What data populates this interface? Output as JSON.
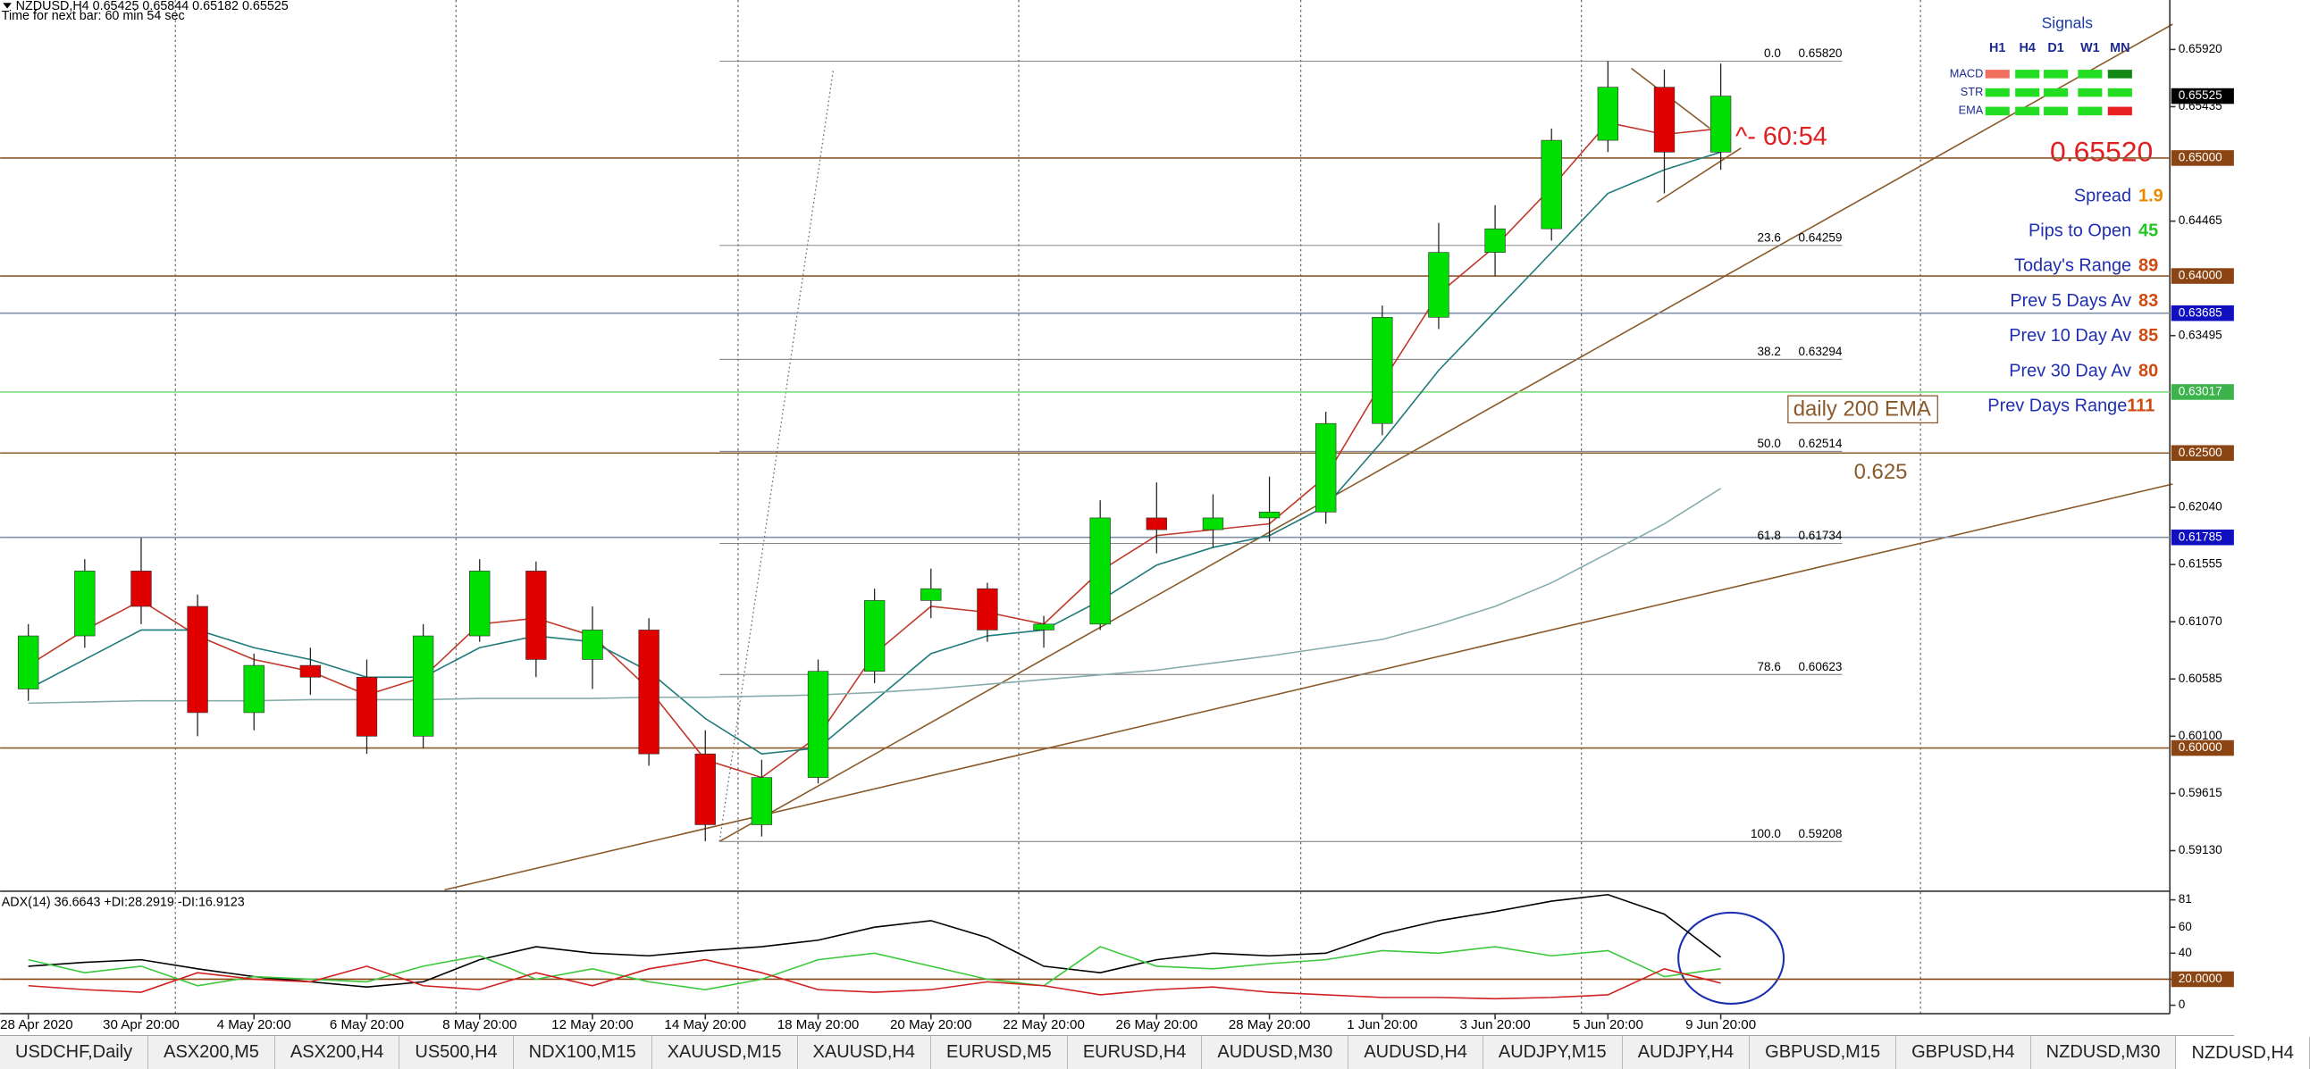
{
  "header": {
    "symbol_line": "NZDUSD,H4  0.65425 0.65844 0.65182 0.65525",
    "timer": "Time for next bar: 60 min 54 sec"
  },
  "chart_data": [
    {
      "type": "candlestick",
      "xlim": [
        -0.5,
        37.96
      ],
      "xticks": [
        {
          "value": 0,
          "label": "28 Apr 2020"
        },
        {
          "value": 2,
          "label": "30 Apr 20:00"
        },
        {
          "value": 4,
          "label": "4 May 20:00"
        },
        {
          "value": 6,
          "label": "6 May 20:00"
        },
        {
          "value": 8,
          "label": "8 May 20:00"
        },
        {
          "value": 10,
          "label": "12 May 20:00"
        },
        {
          "value": 12,
          "label": "14 May 20:00"
        },
        {
          "value": 14,
          "label": "18 May 20:00"
        },
        {
          "value": 16,
          "label": "20 May 20:00"
        },
        {
          "value": 18,
          "label": "22 May 20:00"
        },
        {
          "value": 20,
          "label": "26 May 20:00"
        },
        {
          "value": 22,
          "label": "28 May 20:00"
        },
        {
          "value": 24,
          "label": "1 Jun 20:00"
        },
        {
          "value": 26,
          "label": "3 Jun 20:00"
        },
        {
          "value": 28,
          "label": "5 Jun 20:00"
        },
        {
          "value": 30,
          "label": "9 Jun 20:00"
        }
      ],
      "ylim": [
        0.58798,
        0.66339
      ],
      "yticks": [
        {
          "value": 0.6592,
          "label": "0.65920"
        },
        {
          "value": 0.65435,
          "label": "0.65435"
        },
        {
          "value": 0.64465,
          "label": "0.64465"
        },
        {
          "value": 0.63495,
          "label": "0.63495"
        },
        {
          "value": 0.6204,
          "label": "0.62040"
        },
        {
          "value": 0.61555,
          "label": "0.61555"
        },
        {
          "value": 0.6107,
          "label": "0.61070"
        },
        {
          "value": 0.60585,
          "label": "0.60585"
        },
        {
          "value": 0.601,
          "label": "0.60100"
        },
        {
          "value": 0.59615,
          "label": "0.59615"
        },
        {
          "value": 0.5913,
          "label": "0.59130"
        }
      ],
      "open": [
        0.605,
        0.6095,
        0.615,
        0.612,
        0.603,
        0.607,
        0.606,
        0.601,
        0.6095,
        0.615,
        0.6075,
        0.61,
        0.5995,
        0.5935,
        0.5975,
        0.6065,
        0.6125,
        0.6135,
        0.61,
        0.6105,
        0.6195,
        0.6185,
        0.6195,
        0.62,
        0.6275,
        0.6365,
        0.642,
        0.644,
        0.6515,
        0.656,
        0.6505
      ],
      "high": [
        0.6105,
        0.616,
        0.6178,
        0.613,
        0.608,
        0.6085,
        0.6075,
        0.6105,
        0.616,
        0.6158,
        0.612,
        0.611,
        0.6015,
        0.599,
        0.6075,
        0.6135,
        0.6152,
        0.614,
        0.6112,
        0.621,
        0.6225,
        0.6215,
        0.623,
        0.6285,
        0.6375,
        0.6445,
        0.646,
        0.6525,
        0.6582,
        0.6575,
        0.658
      ],
      "low": [
        0.604,
        0.6085,
        0.6105,
        0.601,
        0.6015,
        0.6045,
        0.5995,
        0.6,
        0.609,
        0.606,
        0.605,
        0.5985,
        0.5921,
        0.5925,
        0.597,
        0.6055,
        0.611,
        0.609,
        0.6085,
        0.61,
        0.6165,
        0.617,
        0.6175,
        0.619,
        0.6265,
        0.6355,
        0.64,
        0.643,
        0.6505,
        0.647,
        0.649
      ],
      "close": [
        0.6095,
        0.615,
        0.612,
        0.603,
        0.607,
        0.606,
        0.601,
        0.6095,
        0.615,
        0.6075,
        0.61,
        0.5995,
        0.5935,
        0.5975,
        0.6065,
        0.6125,
        0.6135,
        0.61,
        0.6105,
        0.6195,
        0.6185,
        0.6195,
        0.62,
        0.6275,
        0.6365,
        0.642,
        0.644,
        0.6515,
        0.656,
        0.6505,
        0.65525
      ],
      "up_color": "#00e000",
      "down_color": "#e00000",
      "moving_averages": [
        {
          "color": "#c0392b",
          "values": [
            0.607,
            0.61,
            0.6125,
            0.6095,
            0.6075,
            0.6065,
            0.6045,
            0.606,
            0.6105,
            0.611,
            0.6095,
            0.605,
            0.599,
            0.5975,
            0.601,
            0.608,
            0.612,
            0.6115,
            0.6105,
            0.615,
            0.618,
            0.6185,
            0.619,
            0.623,
            0.631,
            0.6385,
            0.6425,
            0.6475,
            0.653,
            0.652,
            0.6525
          ]
        },
        {
          "color": "#1f7a7a",
          "values": [
            0.605,
            0.6075,
            0.61,
            0.61,
            0.6085,
            0.6075,
            0.606,
            0.606,
            0.6085,
            0.6095,
            0.609,
            0.6065,
            0.6025,
            0.5995,
            0.6,
            0.604,
            0.608,
            0.6095,
            0.61,
            0.6125,
            0.6155,
            0.617,
            0.618,
            0.6205,
            0.626,
            0.632,
            0.637,
            0.642,
            0.647,
            0.649,
            0.6505
          ]
        },
        {
          "color": "#86acac",
          "values": [
            0.6038,
            0.6039,
            0.604,
            0.604,
            0.604,
            0.6041,
            0.6041,
            0.6041,
            0.6042,
            0.6042,
            0.6042,
            0.6043,
            0.6043,
            0.6044,
            0.6045,
            0.6047,
            0.605,
            0.6054,
            0.6058,
            0.6062,
            0.6066,
            0.6072,
            0.6078,
            0.6085,
            0.6092,
            0.6105,
            0.612,
            0.614,
            0.6165,
            0.619,
            0.622
          ]
        }
      ],
      "levels": [
        {
          "value": 0.65,
          "label": "0.65000",
          "color": "#8b5a2b",
          "label_color": "#8b4513"
        },
        {
          "value": 0.64,
          "label": "0.64000",
          "color": "#8b5a2b",
          "label_color": "#8b4513"
        },
        {
          "value": 0.63685,
          "label": "0.63685",
          "color": "#8090a8",
          "label_color": "#1010c0"
        },
        {
          "value": 0.63017,
          "label": "0.63017",
          "color": "#7ddc7d",
          "label_color": "#3cb44b"
        },
        {
          "value": 0.625,
          "label": "0.62500",
          "color": "#8b5a2b",
          "label_color": "#8b4513"
        },
        {
          "value": 0.61785,
          "label": "0.61785",
          "color": "#8090a8",
          "label_color": "#1010c0"
        },
        {
          "value": 0.6,
          "label": "0.60000",
          "color": "#8b5a2b",
          "label_color": "#8b4513"
        }
      ],
      "current_price": {
        "value": 0.65525,
        "label": "0.65525"
      },
      "fibonacci": [
        {
          "level": "0.0",
          "value": 0.6582,
          "label": "0.65820"
        },
        {
          "level": "23.6",
          "value": 0.64259,
          "label": "0.64259"
        },
        {
          "level": "38.2",
          "value": 0.63294,
          "label": "0.63294"
        },
        {
          "level": "50.0",
          "value": 0.62514,
          "label": "0.62514"
        },
        {
          "level": "61.8",
          "value": 0.61734,
          "label": "0.61734"
        },
        {
          "level": "78.6",
          "value": 0.60623,
          "label": "0.60623"
        },
        {
          "level": "100.0",
          "value": 0.59208,
          "label": "0.59208"
        }
      ],
      "annotations": {
        "countdown": "^- 60:54",
        "ema_box": "daily 200 EMA",
        "level_note": 0.625
      }
    },
    {
      "type": "line",
      "title": "ADX(14) 36.6643 +DI:28.2919 -DI:16.9123",
      "ylim": [
        -6.5,
        86.5
      ],
      "yticks": [
        81,
        60,
        40,
        {
          "value": 20,
          "label": "20.0000"
        },
        0
      ],
      "level": {
        "value": 20,
        "color": "#8b4513"
      },
      "series": [
        {
          "color": "#000000",
          "values": [
            30,
            33,
            35,
            28,
            22,
            18,
            14,
            18,
            35,
            45,
            40,
            38,
            42,
            45,
            50,
            60,
            65,
            52,
            30,
            25,
            35,
            40,
            38,
            40,
            55,
            65,
            72,
            80,
            85,
            70,
            37
          ]
        },
        {
          "color": "#3cc83c",
          "values": [
            35,
            25,
            30,
            15,
            22,
            20,
            18,
            30,
            38,
            20,
            28,
            18,
            12,
            20,
            35,
            40,
            30,
            20,
            15,
            45,
            30,
            28,
            32,
            35,
            42,
            40,
            45,
            38,
            42,
            22,
            28
          ]
        },
        {
          "color": "#d02020",
          "values": [
            15,
            12,
            10,
            25,
            20,
            18,
            30,
            15,
            12,
            25,
            15,
            28,
            35,
            25,
            12,
            10,
            12,
            18,
            15,
            8,
            12,
            14,
            10,
            8,
            6,
            6,
            5,
            6,
            8,
            28,
            17
          ]
        }
      ]
    }
  ],
  "signals": {
    "title": "Signals",
    "columns": [
      "H1",
      "H4",
      "D1",
      "W1",
      "MN"
    ],
    "rows": [
      {
        "name": "MACD",
        "colors": [
          "#f07060",
          "#22dd22",
          "#22dd22",
          "#22dd22",
          "#118811"
        ]
      },
      {
        "name": "STR",
        "colors": [
          "#22dd22",
          "#22dd22",
          "#22dd22",
          "#22dd22",
          "#22dd22"
        ]
      },
      {
        "name": "EMA",
        "colors": [
          "#22dd22",
          "#22dd22",
          "#22dd22",
          "#22dd22",
          "#e82020"
        ]
      }
    ]
  },
  "price_display": {
    "value": 0.6552,
    "label": "0.65520"
  },
  "stats": [
    {
      "label": "Spread",
      "value": 1.9,
      "color": "#e88a00"
    },
    {
      "label": "Pips to Open",
      "value": 45,
      "color": "#22c422"
    },
    {
      "label": "Today's Range",
      "value": 89,
      "color": "#d04a10"
    },
    {
      "label": "Prev 5 Days Av",
      "value": 83,
      "color": "#d04a10"
    },
    {
      "label": "Prev 10 Day Av",
      "value": 85,
      "color": "#d04a10"
    },
    {
      "label": "Prev 30 Day Av",
      "value": 80,
      "color": "#d04a10"
    },
    {
      "label": "Prev Days Range",
      "value": 111,
      "color": "#d04a10"
    }
  ],
  "tabs": [
    "USDCHF,Daily",
    "ASX200,M5",
    "ASX200,H4",
    "US500,H4",
    "NDX100,M15",
    "XAUUSD,M15",
    "XAUUSD,H4",
    "EURUSD,M5",
    "EURUSD,H4",
    "AUDUSD,M30",
    "AUDUSD,H4",
    "AUDJPY,M15",
    "AUDJPY,H4",
    "GBPUSD,M15",
    "GBPUSD,H4",
    "NZDUSD,M30",
    "NZDUSD,H4"
  ],
  "active_tab": 16
}
